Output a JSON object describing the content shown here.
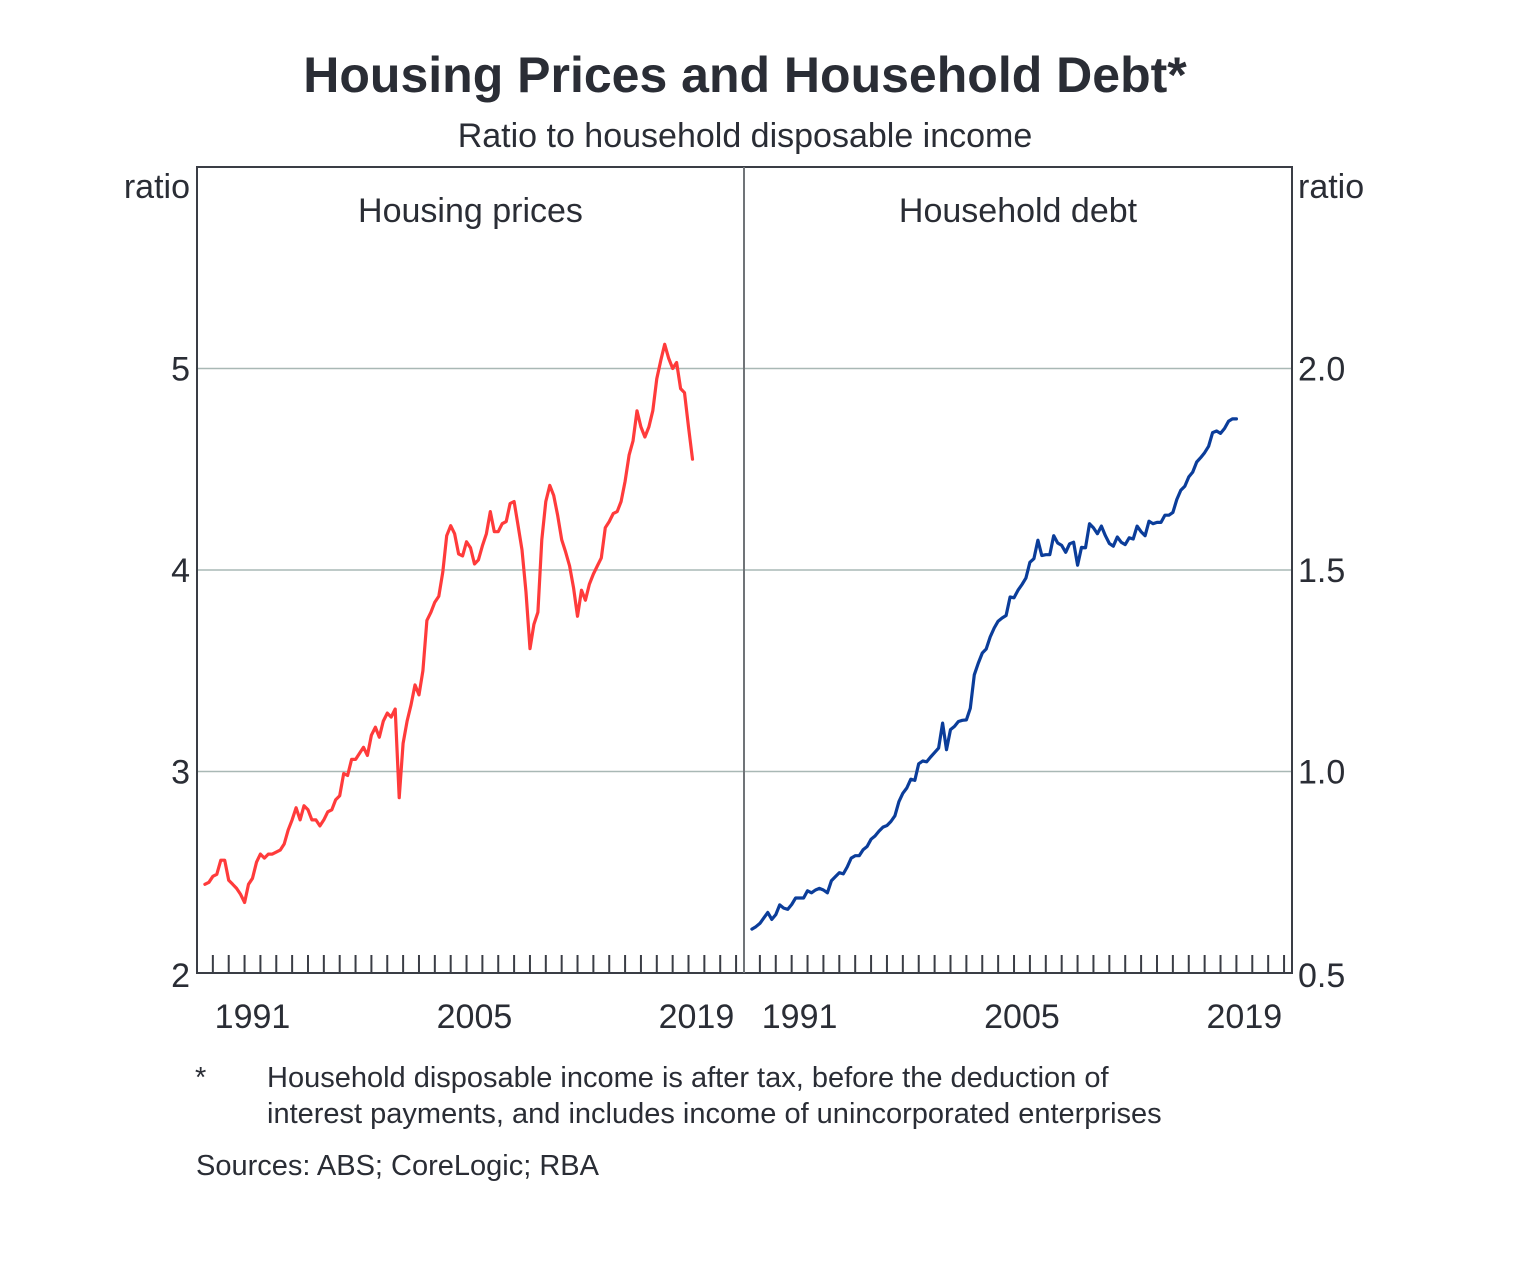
{
  "chart_data": {
    "type": "line",
    "title": "Housing Prices and Household Debt*",
    "subtitle": "Ratio to household disposable income",
    "colors": {
      "text": "#2a2d35",
      "axis": "#3a3d45",
      "divider": "#707478",
      "grid": "#a9b8b5"
    },
    "x_range": [
      1988,
      2022.5
    ],
    "x_ticks_every_year": true,
    "x_tick_labels": [
      "1991",
      "2005",
      "2019"
    ],
    "panels": [
      {
        "title": "Housing prices",
        "ylabel": "ratio",
        "axis_side": "left",
        "ylim": [
          2,
          6
        ],
        "y_ticks": [
          2,
          3,
          4,
          5
        ],
        "y_tick_labels": [
          "2",
          "3",
          "4",
          "5"
        ],
        "grid": true,
        "series": [
          {
            "name": "Housing prices",
            "color": "#ff3b3b",
            "x": [
              1988.5,
              1988.75,
              1989.0,
              1989.25,
              1989.5,
              1989.75,
              1990.0,
              1990.25,
              1990.5,
              1990.75,
              1991.0,
              1991.25,
              1991.5,
              1991.75,
              1992.0,
              1992.25,
              1992.5,
              1992.75,
              1993.0,
              1993.25,
              1993.5,
              1993.75,
              1994.0,
              1994.25,
              1994.5,
              1994.75,
              1995.0,
              1995.25,
              1995.5,
              1995.75,
              1996.0,
              1996.25,
              1996.5,
              1996.75,
              1997.0,
              1997.25,
              1997.5,
              1997.75,
              1998.0,
              1998.25,
              1998.5,
              1998.75,
              1999.0,
              1999.25,
              1999.5,
              1999.75,
              2000.0,
              2000.25,
              2000.5,
              2000.75,
              2001.0,
              2001.25,
              2001.5,
              2001.75,
              2002.0,
              2002.25,
              2002.5,
              2002.75,
              2003.0,
              2003.25,
              2003.5,
              2003.75,
              2004.0,
              2004.25,
              2004.5,
              2004.75,
              2005.0,
              2005.25,
              2005.5,
              2005.75,
              2006.0,
              2006.25,
              2006.5,
              2006.75,
              2007.0,
              2007.25,
              2007.5,
              2007.75,
              2008.0,
              2008.25,
              2008.5,
              2008.75,
              2009.0,
              2009.25,
              2009.5,
              2009.75,
              2010.0,
              2010.25,
              2010.5,
              2010.75,
              2011.0,
              2011.25,
              2011.5,
              2011.75,
              2012.0,
              2012.25,
              2012.5,
              2012.75,
              2013.0,
              2013.25,
              2013.5,
              2013.75,
              2014.0,
              2014.25,
              2014.5,
              2014.75,
              2015.0,
              2015.25,
              2015.5,
              2015.75,
              2016.0,
              2016.25,
              2016.5,
              2016.75,
              2017.0,
              2017.25,
              2017.5,
              2017.75,
              2018.0,
              2018.25,
              2018.5,
              2018.75,
              2019.0,
              2019.25
            ],
            "values": [
              2.44,
              2.45,
              2.48,
              2.49,
              2.56,
              2.56,
              2.46,
              2.44,
              2.42,
              2.39,
              2.35,
              2.44,
              2.47,
              2.55,
              2.59,
              2.57,
              2.59,
              2.59,
              2.6,
              2.61,
              2.64,
              2.71,
              2.76,
              2.82,
              2.76,
              2.83,
              2.81,
              2.76,
              2.76,
              2.73,
              2.76,
              2.8,
              2.81,
              2.86,
              2.88,
              2.99,
              2.98,
              3.06,
              3.06,
              3.09,
              3.12,
              3.08,
              3.18,
              3.22,
              3.17,
              3.25,
              3.29,
              3.27,
              3.31,
              2.87,
              3.14,
              3.25,
              3.33,
              3.43,
              3.38,
              3.5,
              3.75,
              3.79,
              3.84,
              3.87,
              3.99,
              4.17,
              4.22,
              4.18,
              4.08,
              4.07,
              4.14,
              4.11,
              4.03,
              4.05,
              4.12,
              4.18,
              4.29,
              4.19,
              4.19,
              4.23,
              4.24,
              4.33,
              4.34,
              4.22,
              4.1,
              3.89,
              3.61,
              3.73,
              3.79,
              4.15,
              4.34,
              4.42,
              4.37,
              4.27,
              4.15,
              4.09,
              4.02,
              3.91,
              3.77,
              3.9,
              3.85,
              3.93,
              3.98,
              4.02,
              4.06,
              4.21,
              4.24,
              4.28,
              4.29,
              4.34,
              4.44,
              4.57,
              4.64,
              4.79,
              4.71,
              4.66,
              4.71,
              4.79,
              4.95,
              5.04,
              5.12,
              5.05,
              5.0,
              5.03,
              4.9,
              4.88,
              4.71,
              4.55
            ]
          }
        ]
      },
      {
        "title": "Household debt",
        "ylabel": "ratio",
        "axis_side": "right",
        "ylim": [
          0.5,
          2.5
        ],
        "y_ticks": [
          0.5,
          1.0,
          1.5,
          2.0
        ],
        "y_tick_labels": [
          "0.5",
          "1.0",
          "1.5",
          "2.0"
        ],
        "grid": true,
        "series": [
          {
            "name": "Household debt",
            "color": "#0b3d9a",
            "x": [
              1988.5,
              1988.75,
              1989.0,
              1989.25,
              1989.5,
              1989.75,
              1990.0,
              1990.25,
              1990.5,
              1990.75,
              1991.0,
              1991.25,
              1991.5,
              1991.75,
              1992.0,
              1992.25,
              1992.5,
              1992.75,
              1993.0,
              1993.25,
              1993.5,
              1993.75,
              1994.0,
              1994.25,
              1994.5,
              1994.75,
              1995.0,
              1995.25,
              1995.5,
              1995.75,
              1996.0,
              1996.25,
              1996.5,
              1996.75,
              1997.0,
              1997.25,
              1997.5,
              1997.75,
              1998.0,
              1998.25,
              1998.5,
              1998.75,
              1999.0,
              1999.25,
              1999.5,
              1999.75,
              2000.0,
              2000.25,
              2000.5,
              2000.75,
              2001.0,
              2001.25,
              2001.5,
              2001.75,
              2002.0,
              2002.25,
              2002.5,
              2002.75,
              2003.0,
              2003.25,
              2003.5,
              2003.75,
              2004.0,
              2004.25,
              2004.5,
              2004.75,
              2005.0,
              2005.25,
              2005.5,
              2005.75,
              2006.0,
              2006.25,
              2006.5,
              2006.75,
              2007.0,
              2007.25,
              2007.5,
              2007.75,
              2008.0,
              2008.25,
              2008.5,
              2008.75,
              2009.0,
              2009.25,
              2009.5,
              2009.75,
              2010.0,
              2010.25,
              2010.5,
              2010.75,
              2011.0,
              2011.25,
              2011.5,
              2011.75,
              2012.0,
              2012.25,
              2012.5,
              2012.75,
              2013.0,
              2013.25,
              2013.5,
              2013.75,
              2014.0,
              2014.25,
              2014.5,
              2014.75,
              2015.0,
              2015.25,
              2015.5,
              2015.75,
              2016.0,
              2016.25,
              2016.5,
              2016.75,
              2017.0,
              2017.25,
              2017.5,
              2017.75,
              2018.0,
              2018.25,
              2018.5,
              2018.75,
              2019.0
            ],
            "values": [
              0.609,
              0.615,
              0.623,
              0.637,
              0.65,
              0.633,
              0.645,
              0.669,
              0.661,
              0.658,
              0.67,
              0.686,
              0.686,
              0.686,
              0.704,
              0.699,
              0.706,
              0.71,
              0.706,
              0.699,
              0.729,
              0.739,
              0.749,
              0.746,
              0.763,
              0.785,
              0.791,
              0.791,
              0.806,
              0.814,
              0.832,
              0.84,
              0.852,
              0.862,
              0.866,
              0.876,
              0.89,
              0.925,
              0.946,
              0.959,
              0.981,
              0.978,
              1.019,
              1.026,
              1.024,
              1.036,
              1.047,
              1.058,
              1.12,
              1.054,
              1.104,
              1.112,
              1.124,
              1.127,
              1.128,
              1.157,
              1.24,
              1.269,
              1.294,
              1.304,
              1.334,
              1.356,
              1.373,
              1.381,
              1.387,
              1.433,
              1.431,
              1.45,
              1.464,
              1.48,
              1.519,
              1.528,
              1.574,
              1.536,
              1.538,
              1.538,
              1.585,
              1.567,
              1.561,
              1.544,
              1.565,
              1.569,
              1.512,
              1.556,
              1.555,
              1.615,
              1.605,
              1.59,
              1.609,
              1.585,
              1.566,
              1.559,
              1.582,
              1.569,
              1.563,
              1.58,
              1.577,
              1.609,
              1.595,
              1.585,
              1.621,
              1.615,
              1.618,
              1.618,
              1.636,
              1.636,
              1.643,
              1.675,
              1.698,
              1.708,
              1.731,
              1.743,
              1.768,
              1.779,
              1.791,
              1.807,
              1.841,
              1.845,
              1.839,
              1.851,
              1.869,
              1.875,
              1.875
            ]
          }
        ]
      }
    ],
    "footnote_marker": "*",
    "footnote_lines": [
      "Household disposable income is after tax, before the deduction of",
      "interest payments, and includes income of unincorporated enterprises"
    ],
    "sources": "Sources: ABS; CoreLogic; RBA"
  }
}
